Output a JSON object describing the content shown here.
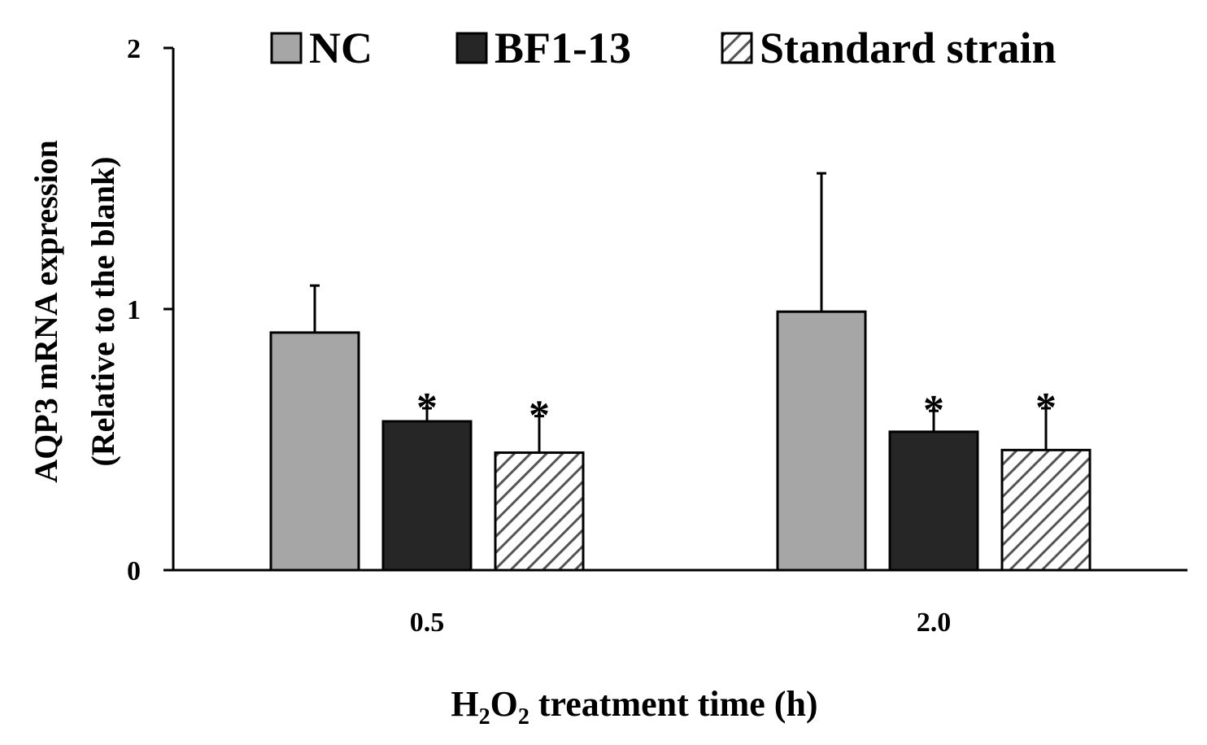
{
  "chart_data": {
    "type": "bar",
    "title": "",
    "ylabel_line1": "AQP3 mRNA expression",
    "ylabel_line2": "(Relative to the blank)",
    "xlabel": {
      "prefix": "H",
      "sub1": "2",
      "mid": "O",
      "sub2": "2",
      "suffix": " treatment time (h)"
    },
    "categories": [
      "0.5",
      "2.0"
    ],
    "ylim": [
      0,
      2
    ],
    "yticks": [
      "0",
      "1",
      "2"
    ],
    "significance_marker": "*",
    "series": [
      {
        "name": "NC",
        "color": "#a6a6a6",
        "pattern": "solid",
        "values": [
          0.91,
          0.99
        ],
        "errors": [
          0.18,
          0.53
        ],
        "significant": [
          false,
          false
        ]
      },
      {
        "name": "BF1-13",
        "color": "#262626",
        "pattern": "solid",
        "values": [
          0.57,
          0.53
        ],
        "errors": [
          0.05,
          0.08
        ],
        "significant": [
          true,
          true
        ]
      },
      {
        "name": "Standard strain",
        "color": "#ffffff",
        "pattern": "hatch",
        "values": [
          0.45,
          0.46
        ],
        "errors": [
          0.14,
          0.16
        ],
        "significant": [
          true,
          true
        ]
      }
    ],
    "legend_position": "top"
  }
}
